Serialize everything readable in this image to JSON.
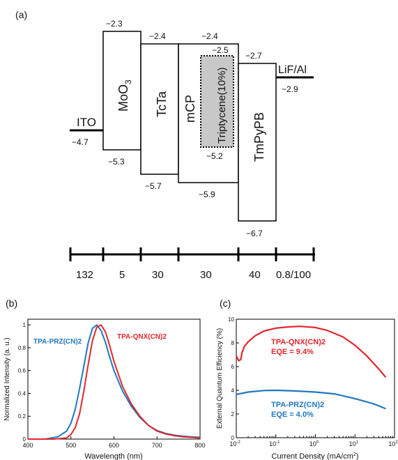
{
  "panel_a": {
    "label": "(a)",
    "layers": [
      {
        "name": "ITO",
        "lumo": "",
        "homo": "−4.7",
        "thickness": "132"
      },
      {
        "name": "MoO",
        "sub": "3",
        "lumo": "−2.3",
        "homo": "−5.3",
        "thickness": "5"
      },
      {
        "name": "TcTa",
        "lumo": "−2.4",
        "homo": "−5.7",
        "thickness": "30"
      },
      {
        "name": "mCP",
        "lumo": "−2.4",
        "homo": "−5.9",
        "thickness": "30"
      },
      {
        "name": "Triptycene(10%)",
        "lumo": "−2.5",
        "homo": "−5.2"
      },
      {
        "name": "TmPyPB",
        "lumo": "−2.7",
        "homo": "−6.7",
        "thickness": "40"
      },
      {
        "name": "LiF/Al",
        "lumo": "",
        "homo": "−2.9",
        "thickness": "0.8/100"
      }
    ]
  },
  "panel_b": {
    "label": "(b)",
    "xlabel": "Wavelength (nm)",
    "ylabel": "Normalized Intensity (a. u.)",
    "xticks": [
      "400",
      "500",
      "600",
      "700",
      "800"
    ],
    "yticks": [
      "0",
      "0.2",
      "0.4",
      "0.6",
      "0.8",
      "1"
    ],
    "series_labels": [
      "TPA-PRZ(CN)2",
      "TPA-QNX(CN)2"
    ]
  },
  "panel_c": {
    "label": "(c)",
    "xlabel": "Current Density (mA/cm",
    "xlabel_sup": "2",
    "xlabel_end": ")",
    "ylabel": "External Quantum Efficiency (%)",
    "yticks": [
      "0",
      "2",
      "4",
      "6",
      "8",
      "10"
    ],
    "xtick_bases": [
      "10",
      "10",
      "10",
      "10",
      "10"
    ],
    "xtick_exps": [
      "-2",
      "-1",
      "0",
      "1",
      "2"
    ],
    "annotations": [
      {
        "name": "TPA-QNX(CN)2",
        "eqe": "EQE = 9.4%"
      },
      {
        "name": "TPA-PRZ(CN)2",
        "eqe": "EQE = 4.0%"
      }
    ]
  },
  "chart_data": [
    {
      "type": "line",
      "xlabel": "Wavelength (nm)",
      "ylabel": "Normalized Intensity (a. u.)",
      "xlim": [
        400,
        800
      ],
      "ylim": [
        0,
        1.05
      ],
      "grid": false,
      "series": [
        {
          "name": "TPA-PRZ(CN)2",
          "color": "#1f78c1",
          "x": [
            400,
            440,
            470,
            490,
            500,
            510,
            520,
            530,
            540,
            550,
            560,
            570,
            580,
            590,
            600,
            620,
            640,
            660,
            680,
            700,
            720,
            740,
            760,
            780,
            800
          ],
          "y": [
            0,
            0,
            0.02,
            0.07,
            0.14,
            0.26,
            0.44,
            0.64,
            0.84,
            0.97,
            1.0,
            0.95,
            0.85,
            0.72,
            0.6,
            0.42,
            0.29,
            0.19,
            0.12,
            0.075,
            0.05,
            0.035,
            0.025,
            0.02,
            0.015
          ]
        },
        {
          "name": "TPA-QNX(CN)2",
          "color": "#e3262b",
          "x": [
            400,
            460,
            490,
            500,
            510,
            520,
            530,
            540,
            550,
            560,
            570,
            580,
            590,
            600,
            620,
            640,
            660,
            680,
            700,
            720,
            740,
            760,
            780,
            800
          ],
          "y": [
            0,
            0,
            0.01,
            0.04,
            0.1,
            0.22,
            0.42,
            0.65,
            0.86,
            0.98,
            1.0,
            0.94,
            0.82,
            0.68,
            0.46,
            0.31,
            0.2,
            0.12,
            0.07,
            0.045,
            0.03,
            0.02,
            0.015,
            0.01
          ]
        }
      ]
    },
    {
      "type": "line",
      "xlabel": "Current Density (mA/cm2)",
      "ylabel": "External Quantum Efficiency (%)",
      "xscale": "log",
      "xlim": [
        0.01,
        100
      ],
      "ylim": [
        0,
        10
      ],
      "grid": false,
      "series": [
        {
          "name": "TPA-QNX(CN)2",
          "color": "#e3262b",
          "x": [
            0.01,
            0.0115,
            0.013,
            0.014,
            0.016,
            0.02,
            0.03,
            0.05,
            0.1,
            0.2,
            0.4,
            1,
            2,
            5,
            10,
            20,
            40,
            60
          ],
          "y": [
            6.9,
            6.5,
            6.6,
            7.2,
            7.7,
            8.1,
            8.6,
            9.0,
            9.25,
            9.35,
            9.4,
            9.3,
            9.05,
            8.5,
            7.8,
            6.9,
            5.8,
            5.1
          ]
        },
        {
          "name": "TPA-PRZ(CN)2",
          "color": "#1f78c1",
          "x": [
            0.01,
            0.02,
            0.05,
            0.1,
            0.3,
            1,
            3,
            10,
            30,
            60
          ],
          "y": [
            3.65,
            3.85,
            3.98,
            4.0,
            3.95,
            3.85,
            3.7,
            3.3,
            2.85,
            2.45
          ]
        }
      ]
    }
  ]
}
